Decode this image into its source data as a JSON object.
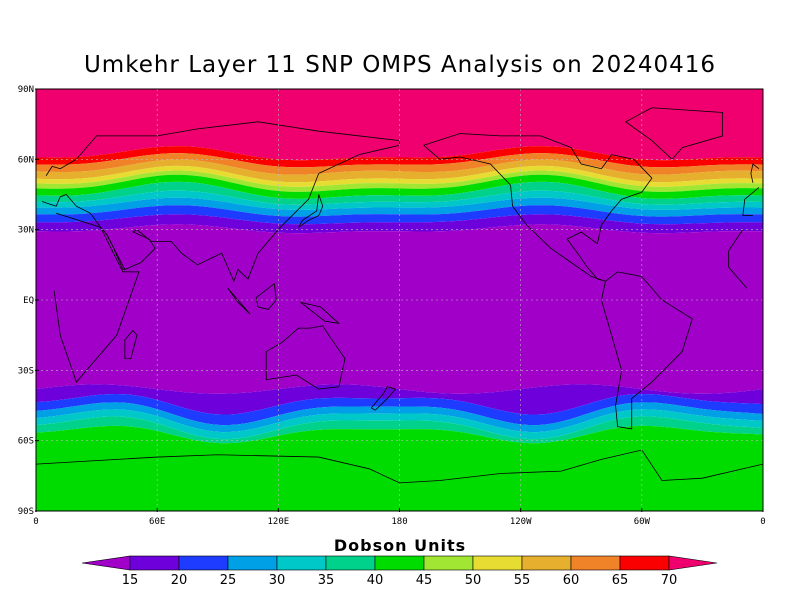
{
  "title": "Umkehr Layer 11 SNP OMPS Analysis on 20240416",
  "colorbar": {
    "title": "Dobson Units",
    "levels": [
      "15",
      "20",
      "25",
      "30",
      "35",
      "40",
      "45",
      "50",
      "55",
      "60",
      "65",
      "70"
    ],
    "colors": [
      "#a000c8",
      "#6e00dc",
      "#1e3cff",
      "#00a0e6",
      "#00c8c8",
      "#00d28c",
      "#00dc00",
      "#a0e632",
      "#e6dc32",
      "#e6af2d",
      "#f08228",
      "#fa0000",
      "#f0006e"
    ]
  },
  "axes": {
    "lat_labels": [
      "90N",
      "60N",
      "30N",
      "EQ",
      "30S",
      "60S",
      "90S"
    ],
    "lon_labels": [
      "0",
      "60E",
      "120E",
      "180",
      "120W",
      "60W",
      "0"
    ]
  },
  "chart_data": {
    "type": "heatmap",
    "title": "Umkehr Layer 11 SNP OMPS Analysis on 20240416",
    "units": "Dobson Units",
    "xlabel": "",
    "ylabel": "",
    "x_range": [
      0,
      360
    ],
    "y_range": [
      -90,
      90
    ],
    "grid": true,
    "note_bands_north": [
      {
        "lat_min": 60,
        "lat_max": 90,
        "value_range": [
          65,
          70
        ]
      },
      {
        "lat_min": 45,
        "lat_max": 60,
        "value_range": [
          40,
          65
        ]
      },
      {
        "lat_min": 30,
        "lat_max": 45,
        "value_range": [
          20,
          40
        ]
      },
      {
        "lat_min": -40,
        "lat_max": 30,
        "value_range": [
          0,
          15
        ]
      }
    ],
    "note_bands_south": [
      {
        "lat_min": -55,
        "lat_max": -40,
        "value_range": [
          15,
          35
        ]
      },
      {
        "lat_min": -90,
        "lat_max": -55,
        "value_range": [
          35,
          45
        ]
      }
    ]
  }
}
